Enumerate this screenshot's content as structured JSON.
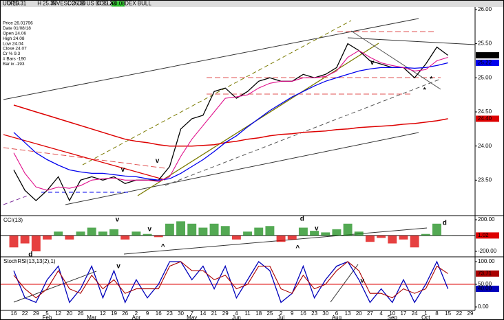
{
  "header": {
    "symbol": "UUP,D",
    "name": "INVESCO DB US DOLLAR INDEX BULL",
    "fields": [
      "O",
      "25.31",
      "H",
      "25.38",
      "L",
      "25.30",
      "C",
      "25.33"
    ],
    "change": "+0.08"
  },
  "info_box": [
    "Price 26.01796",
    "Date 01/08/18",
    "Open 24.06",
    "High 24.08",
    "Low 24.04",
    "Close 24.07",
    "Cr % 9.3",
    "# Bars -190",
    "Bar ix -193"
  ],
  "chart_data": [
    {
      "type": "line",
      "categories": [
        "16",
        "22",
        "29",
        "5",
        "12",
        "20",
        "26",
        null,
        "12",
        "19",
        "26",
        "2",
        "9",
        "16",
        "23",
        "30",
        "7",
        "14",
        "21",
        "29",
        "4",
        "11",
        "18",
        "25",
        "2",
        "9",
        "16",
        "23",
        "30",
        "6",
        "13",
        "20",
        "27",
        "4",
        "10",
        "17",
        "24",
        "1",
        "8",
        "15",
        "22",
        "29"
      ],
      "months": [
        {
          "label": "Feb",
          "category": 3
        },
        {
          "label": "Mar",
          "category": 7
        },
        {
          "label": "Apr",
          "category": 11
        },
        {
          "label": "May",
          "category": 16
        },
        {
          "label": "Jun",
          "category": 20
        },
        {
          "label": "Jul",
          "category": 24
        },
        {
          "label": "Aug",
          "category": 29
        },
        {
          "label": "Sep",
          "category": 34
        },
        {
          "label": "Oct",
          "category": 37
        }
      ],
      "ylim": [
        23.0,
        26.06
      ],
      "yticks": [
        {
          "value": 23.5,
          "label": "23.50"
        },
        {
          "value": 24,
          "label": "24.00"
        },
        {
          "value": 24.5,
          "label": "24.50"
        },
        {
          "value": 25,
          "label": "25.00"
        },
        {
          "value": 25.5,
          "label": "25.50"
        },
        {
          "value": 26,
          "label": "26.00"
        }
      ],
      "series": [
        {
          "name": "Close",
          "color": "#000000",
          "width": 1.3,
          "marker": {
            "value": 25.33,
            "label": "25.33"
          },
          "values": [
            23.65,
            23.35,
            23.2,
            23.35,
            23.55,
            23.2,
            23.5,
            23.55,
            23.5,
            23.55,
            23.45,
            23.5,
            23.5,
            23.5,
            23.7,
            24.25,
            24.4,
            24.45,
            24.8,
            24.85,
            24.7,
            24.8,
            24.95,
            25.0,
            24.95,
            24.95,
            25.05,
            25.0,
            25.05,
            25.15,
            25.5,
            25.4,
            25.25,
            25.2,
            25.15,
            25.15,
            25.0,
            25.2,
            25.45,
            25.33,
            null,
            null
          ]
        },
        {
          "name": "MA200",
          "color": "#dd0000",
          "width": 1.5,
          "marker": {
            "value": 24.4,
            "label": "24.40"
          },
          "values": [
            24.6,
            24.55,
            24.5,
            24.45,
            24.4,
            24.35,
            24.3,
            24.25,
            24.2,
            24.15,
            24.1,
            24.07,
            24.05,
            24.02,
            24.0,
            24.0,
            24.0,
            24.01,
            24.02,
            24.05,
            24.07,
            24.1,
            24.12,
            24.15,
            24.17,
            24.18,
            24.2,
            24.21,
            24.22,
            24.24,
            24.25,
            24.27,
            24.28,
            24.29,
            24.3,
            24.32,
            24.33,
            24.35,
            24.37,
            24.4,
            null,
            null
          ]
        },
        {
          "name": "MA50",
          "color": "#0000ee",
          "width": 1.3,
          "marker": {
            "value": 25.22,
            "label": "25.22"
          },
          "values": [
            24.2,
            24.05,
            23.9,
            23.8,
            23.72,
            23.65,
            23.62,
            23.6,
            23.6,
            23.58,
            23.56,
            23.55,
            23.52,
            23.5,
            23.52,
            23.6,
            23.7,
            23.8,
            23.92,
            24.05,
            24.15,
            24.28,
            24.4,
            24.52,
            24.62,
            24.72,
            24.8,
            24.88,
            24.95,
            25.0,
            25.05,
            25.1,
            25.13,
            25.15,
            25.15,
            25.15,
            25.14,
            25.15,
            25.18,
            25.22,
            null,
            null
          ]
        },
        {
          "name": "MA20",
          "color": "#e0108c",
          "width": 1.1,
          "values": [
            23.9,
            23.6,
            23.4,
            23.35,
            23.4,
            23.38,
            23.42,
            23.5,
            23.52,
            23.53,
            23.5,
            23.5,
            23.5,
            23.48,
            23.55,
            23.85,
            24.1,
            24.3,
            24.5,
            24.7,
            24.72,
            24.75,
            24.85,
            24.92,
            24.95,
            24.95,
            25.0,
            25.0,
            25.02,
            25.1,
            25.3,
            25.4,
            25.3,
            25.22,
            25.18,
            25.15,
            25.1,
            25.12,
            25.25,
            25.3,
            null,
            null
          ]
        }
      ],
      "annotations": [
        {
          "text": "v",
          "color": "#1a8c1a",
          "x": 12.9,
          "y": 23.78
        },
        {
          "text": "v",
          "color": "#cc00cc",
          "x": 9.8,
          "y": 23.65
        },
        {
          "text": "v",
          "color": "#1a8c1a",
          "x": 32.2,
          "y": 25.22
        },
        {
          "text": "*",
          "color": "#0000ee",
          "x": 37.5,
          "y": 24.98
        },
        {
          "text": "*",
          "color": "#e0108c",
          "x": 36.9,
          "y": 24.82
        }
      ]
    },
    {
      "type": "bar",
      "title": "CCI(13)",
      "ylim": [
        -252,
        235
      ],
      "yticks": [
        {
          "value": -200,
          "label": "-200.00"
        },
        {
          "value": 200,
          "label": "200.00"
        }
      ],
      "reference_line": 0,
      "pos_color": "#1a8c1a",
      "neg_color": "#dd0000",
      "series": [
        {
          "name": "CCI",
          "color": "#dd0000",
          "marker": {
            "value": 1.02,
            "label": "1.02"
          },
          "values": [
            -150,
            -100,
            -200,
            -50,
            50,
            -50,
            50,
            100,
            50,
            80,
            -50,
            50,
            20,
            -20,
            150,
            180,
            150,
            100,
            150,
            120,
            -50,
            50,
            100,
            120,
            -80,
            -50,
            100,
            60,
            40,
            80,
            150,
            50,
            -80,
            -30,
            -100,
            -50,
            -150,
            20,
            150,
            1.02,
            null,
            null
          ]
        }
      ],
      "annotations": [
        {
          "text": "d",
          "color": "#1a8c1a",
          "x": 1.5,
          "y": -240
        },
        {
          "text": "v",
          "color": "#1a8c1a",
          "x": 9.3,
          "y": 200
        },
        {
          "text": "v",
          "color": "#dd0000",
          "x": 12.2,
          "y": 80
        },
        {
          "text": "^",
          "color": "#0000ee",
          "x": 13.4,
          "y": -140
        },
        {
          "text": "d",
          "color": "#dd0000",
          "x": 25.9,
          "y": 210
        },
        {
          "text": "v",
          "color": "#dd0000",
          "x": 27.2,
          "y": 90
        },
        {
          "text": "^",
          "color": "#0000ee",
          "x": 25.5,
          "y": -160
        },
        {
          "text": "d",
          "color": "#dd0000",
          "x": 38.7,
          "y": 160
        }
      ]
    },
    {
      "type": "line",
      "title": "StochRSI(13,13(2),1)",
      "ylim": [
        -7.6,
        107.6
      ],
      "yticks": [
        {
          "value": 0,
          "label": "0.00"
        },
        {
          "value": 50,
          "label": "50.00"
        },
        {
          "value": 100,
          "label": "100.00"
        }
      ],
      "reference_line": 50,
      "reference_color": "#dd0000",
      "series": [
        {
          "name": "StochRSI",
          "color": "#0000bb",
          "width": 1.3,
          "marker": {
            "value": 40,
            "label": "40.00"
          },
          "values": [
            80,
            20,
            10,
            60,
            90,
            10,
            40,
            90,
            20,
            80,
            10,
            60,
            20,
            50,
            100,
            100,
            60,
            90,
            40,
            90,
            20,
            60,
            100,
            80,
            10,
            30,
            90,
            20,
            60,
            90,
            100,
            60,
            10,
            40,
            10,
            60,
            10,
            50,
            100,
            40,
            null,
            null
          ]
        },
        {
          "name": "Signal",
          "color": "#aa0000",
          "width": 1.1,
          "marker": {
            "value": 73.71,
            "label": "73.71"
          },
          "values": [
            70,
            40,
            20,
            40,
            80,
            40,
            30,
            70,
            40,
            60,
            30,
            40,
            40,
            40,
            90,
            100,
            80,
            80,
            60,
            70,
            40,
            50,
            90,
            90,
            40,
            30,
            70,
            40,
            50,
            80,
            100,
            80,
            30,
            30,
            20,
            40,
            30,
            40,
            90,
            73.71,
            null,
            null
          ]
        }
      ],
      "annotations": [
        {
          "text": "v",
          "color": "#dd0000",
          "x": 9.4,
          "y": 90
        },
        {
          "text": "v",
          "color": "#dd0000",
          "x": 31.3,
          "y": 58
        }
      ]
    }
  ]
}
